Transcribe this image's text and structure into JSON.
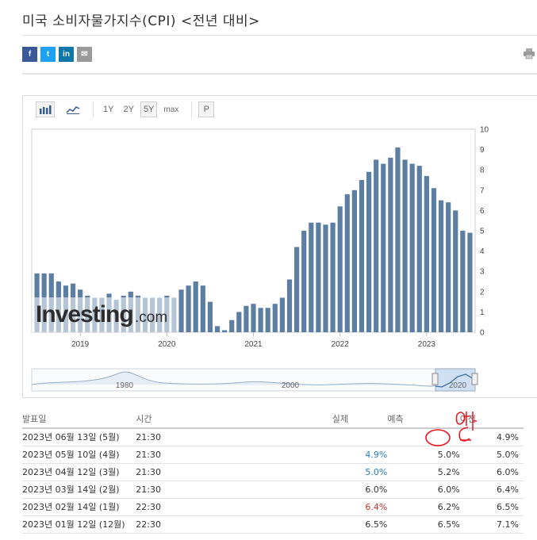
{
  "page": {
    "title": "미국 소비자물가지수(CPI) <전년 대비>"
  },
  "share": {
    "facebook": "f",
    "twitter": "t",
    "linkedin": "in",
    "email": "✉"
  },
  "toolbar": {
    "zoom_1y": "1Y",
    "zoom_2y": "2Y",
    "zoom_5y": "5Y",
    "zoom_max": "max",
    "period": "P"
  },
  "watermark": {
    "brand": "Investing",
    "suffix": ".com"
  },
  "chart_data": {
    "type": "bar",
    "ylim": [
      0,
      10
    ],
    "yticks": [
      "0",
      "1",
      "2",
      "3",
      "4",
      "5",
      "6",
      "7",
      "8",
      "9",
      "10"
    ],
    "xticks": [
      "2019",
      "2020",
      "2021",
      "2022",
      "2023"
    ],
    "values": [
      2.9,
      2.9,
      2.9,
      2.5,
      2.3,
      2.4,
      2.1,
      1.8,
      1.7,
      1.7,
      1.9,
      1.6,
      1.8,
      2.0,
      1.8,
      1.7,
      1.7,
      1.7,
      1.8,
      1.7,
      2.1,
      2.3,
      2.5,
      2.3,
      1.5,
      0.3,
      0.1,
      0.6,
      1.0,
      1.3,
      1.4,
      1.2,
      1.2,
      1.4,
      1.7,
      2.6,
      4.2,
      5.0,
      5.4,
      5.4,
      5.3,
      5.4,
      6.2,
      6.8,
      7.0,
      7.5,
      7.9,
      8.5,
      8.3,
      8.6,
      9.1,
      8.5,
      8.3,
      8.2,
      7.7,
      7.1,
      6.5,
      6.4,
      6.0,
      5.0,
      4.9
    ],
    "navigator": {
      "xticks": [
        "1980",
        "2000",
        "2020"
      ]
    }
  },
  "table": {
    "headers": {
      "date": "발표일",
      "time": "시간",
      "actual": "실제",
      "forecast": "예측",
      "previous": "이전"
    },
    "rows": [
      {
        "date": "2023년 06월 13일 (5월)",
        "time": "21:30",
        "actual": "",
        "forecast": "",
        "previous": "4.9%",
        "actual_color": ""
      },
      {
        "date": "2023년 05월 10일 (4월)",
        "time": "21:30",
        "actual": "4.9%",
        "forecast": "5.0%",
        "previous": "5.0%",
        "actual_color": "blue"
      },
      {
        "date": "2023년 04월 12일 (3월)",
        "time": "21:30",
        "actual": "5.0%",
        "forecast": "5.2%",
        "previous": "6.0%",
        "actual_color": "blue"
      },
      {
        "date": "2023년 03월 14일 (2월)",
        "time": "21:30",
        "actual": "6.0%",
        "forecast": "6.0%",
        "previous": "6.4%",
        "actual_color": ""
      },
      {
        "date": "2023년 02월 14일 (1월)",
        "time": "22:30",
        "actual": "6.4%",
        "forecast": "6.2%",
        "previous": "6.5%",
        "actual_color": "red"
      },
      {
        "date": "2023년 01월 12일 (12월)",
        "time": "22:30",
        "actual": "6.5%",
        "forecast": "6.5%",
        "previous": "7.1%",
        "actual_color": ""
      }
    ]
  },
  "colors": {
    "bar": "#5d7ea3",
    "annotation": "#e8141e",
    "up": "#2a7fc5",
    "down": "#d0312d"
  }
}
